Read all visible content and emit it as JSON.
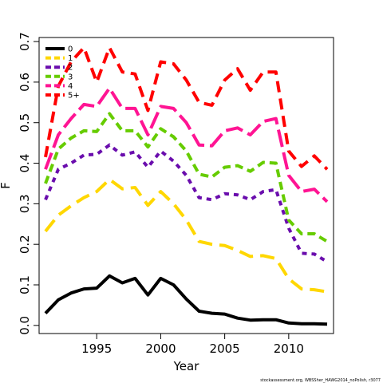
{
  "chart_data": {
    "type": "line",
    "title": "",
    "xlabel": "Year",
    "ylabel": "F",
    "xlim": [
      1990.5,
      2013.5
    ],
    "ylim": [
      -0.02,
      0.71
    ],
    "x_ticks": [
      "1995",
      "2000",
      "2005",
      "2010"
    ],
    "y_ticks": [
      "0.0",
      "0.1",
      "0.2",
      "0.3",
      "0.4",
      "0.5",
      "0.6",
      "0.7"
    ],
    "grid": false,
    "legend_position": "top-left",
    "x": [
      1991,
      1992,
      1993,
      1994,
      1995,
      1996,
      1997,
      1998,
      1999,
      2000,
      2001,
      2002,
      2003,
      2004,
      2005,
      2006,
      2007,
      2008,
      2009,
      2010,
      2011,
      2012,
      2013
    ],
    "series": [
      {
        "name": "0",
        "color": "#000000",
        "dash": "solid",
        "values": [
          0.03,
          0.063,
          0.08,
          0.09,
          0.092,
          0.122,
          0.105,
          0.116,
          0.075,
          0.116,
          0.1,
          0.065,
          0.035,
          0.03,
          0.028,
          0.018,
          0.013,
          0.014,
          0.014,
          0.006,
          0.004,
          0.004,
          0.003
        ]
      },
      {
        "name": "1",
        "color": "#FFD700",
        "dash": "long",
        "values": [
          0.232,
          0.272,
          0.295,
          0.315,
          0.33,
          0.36,
          0.337,
          0.34,
          0.296,
          0.33,
          0.3,
          0.26,
          0.207,
          0.2,
          0.197,
          0.185,
          0.17,
          0.172,
          0.165,
          0.115,
          0.09,
          0.088,
          0.083
        ]
      },
      {
        "name": "2",
        "color": "#6A0DAD",
        "dash": "short",
        "values": [
          0.31,
          0.385,
          0.4,
          0.42,
          0.422,
          0.445,
          0.42,
          0.428,
          0.39,
          0.43,
          0.405,
          0.37,
          0.315,
          0.31,
          0.325,
          0.322,
          0.31,
          0.33,
          0.335,
          0.24,
          0.178,
          0.176,
          0.157
        ]
      },
      {
        "name": "3",
        "color": "#66CC00",
        "dash": "medium",
        "values": [
          0.35,
          0.435,
          0.462,
          0.48,
          0.478,
          0.522,
          0.48,
          0.48,
          0.44,
          0.485,
          0.465,
          0.43,
          0.373,
          0.366,
          0.39,
          0.394,
          0.38,
          0.402,
          0.4,
          0.26,
          0.226,
          0.226,
          0.207
        ]
      },
      {
        "name": "4",
        "color": "#FF1493",
        "dash": "very-long",
        "values": [
          0.385,
          0.47,
          0.51,
          0.545,
          0.54,
          0.585,
          0.535,
          0.535,
          0.47,
          0.54,
          0.535,
          0.5,
          0.445,
          0.443,
          0.48,
          0.487,
          0.47,
          0.503,
          0.51,
          0.37,
          0.33,
          0.336,
          0.305
        ]
      },
      {
        "name": "5+",
        "color": "#FF0000",
        "dash": "dashed",
        "values": [
          0.415,
          0.59,
          0.65,
          0.685,
          0.6,
          0.685,
          0.625,
          0.62,
          0.53,
          0.65,
          0.645,
          0.605,
          0.55,
          0.543,
          0.605,
          0.633,
          0.58,
          0.625,
          0.625,
          0.43,
          0.392,
          0.418,
          0.385
        ]
      }
    ]
  },
  "footnote": "stockassessment.org, WBSSher_HAWG2014_noPolish, r3077"
}
